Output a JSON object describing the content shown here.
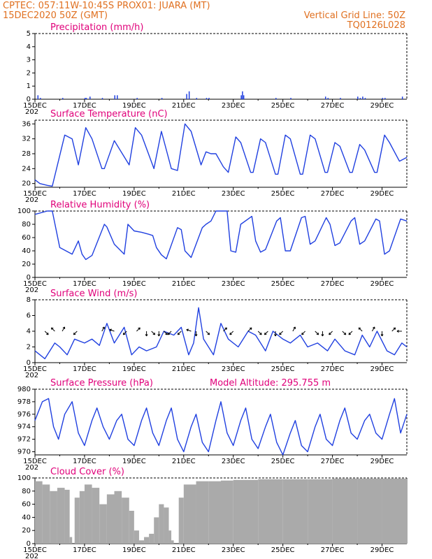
{
  "header": {
    "line1": "CPTEC:  057:11W-10:45S   PROX01: JUARA (MT)",
    "line2": "15DEC2020 50Z (GMT)",
    "grid_note": "Vertical Grid Line: 50Z",
    "code": "TQ0126L028"
  },
  "x_axis": {
    "ticks": [
      "15DEC",
      "17DEC",
      "19DEC",
      "21DEC",
      "23DEC",
      "25DEC",
      "27DEC",
      "29DEC"
    ],
    "tick_days": [
      0,
      2,
      4,
      6,
      8,
      10,
      12,
      14
    ],
    "sub_label": "202",
    "range_days": [
      0,
      15
    ]
  },
  "chart_data": [
    {
      "id": "precip",
      "type": "bar",
      "title": "Precipitation (mm/h)",
      "ylim": [
        0,
        5
      ],
      "yticks": [
        0,
        1,
        2,
        3,
        4,
        5
      ],
      "color": "#1f3fe0",
      "points": [
        [
          0.1,
          0.3
        ],
        [
          0.2,
          0.1
        ],
        [
          1.1,
          0.1
        ],
        [
          2.0,
          0.1
        ],
        [
          2.05,
          0.1
        ],
        [
          2.2,
          0.2
        ],
        [
          2.7,
          0.1
        ],
        [
          3.2,
          0.3
        ],
        [
          3.3,
          0.3
        ],
        [
          4.1,
          0.1
        ],
        [
          5.1,
          0.1
        ],
        [
          6.1,
          0.4
        ],
        [
          6.2,
          0.6
        ],
        [
          6.5,
          0.1
        ],
        [
          6.9,
          0.1
        ],
        [
          7.0,
          0.1
        ],
        [
          8.3,
          0.3
        ],
        [
          8.35,
          0.6
        ],
        [
          8.4,
          0.3
        ],
        [
          9.7,
          0.1
        ],
        [
          10.3,
          0.1
        ],
        [
          11.7,
          0.2
        ],
        [
          11.8,
          0.1
        ],
        [
          12.3,
          0.1
        ],
        [
          13.0,
          0.2
        ],
        [
          13.1,
          0.1
        ],
        [
          13.2,
          0.2
        ],
        [
          13.3,
          0.1
        ],
        [
          14.0,
          0.1
        ],
        [
          14.1,
          0.1
        ],
        [
          14.8,
          0.2
        ]
      ]
    },
    {
      "id": "temp",
      "type": "line",
      "title": "Surface Temperature (nC)",
      "ylim": [
        19,
        37
      ],
      "yticks": [
        20,
        24,
        28,
        32,
        36
      ],
      "color": "#2040e0",
      "x": [
        0,
        0.2,
        0.5,
        0.7,
        1.2,
        1.5,
        1.75,
        2.05,
        2.3,
        2.7,
        2.8,
        3.2,
        3.8,
        4.05,
        4.3,
        4.8,
        5.1,
        5.5,
        5.75,
        6.05,
        6.3,
        6.7,
        6.9,
        7.1,
        7.3,
        7.6,
        7.8,
        8.1,
        8.3,
        8.7,
        8.8,
        9.1,
        9.3,
        9.7,
        9.8,
        10.1,
        10.3,
        10.7,
        10.8,
        11.1,
        11.3,
        11.7,
        11.8,
        12.1,
        12.3,
        12.7,
        12.8,
        13.1,
        13.3,
        13.7,
        13.8,
        14.1,
        14.3,
        14.7,
        15.0
      ],
      "y": [
        21,
        20,
        19.5,
        19.3,
        33,
        32,
        25,
        35,
        32,
        24,
        24,
        31.5,
        25,
        35,
        33,
        24,
        34,
        24,
        23.5,
        36,
        34,
        25,
        28.5,
        28,
        28,
        24.5,
        23,
        32.5,
        31,
        23,
        23,
        32,
        31,
        22.5,
        22.5,
        33,
        32,
        22.5,
        22.5,
        33,
        32,
        23,
        23,
        31,
        30,
        23,
        23,
        30.5,
        29,
        23,
        23,
        33,
        31,
        26,
        27
      ]
    },
    {
      "id": "rh",
      "type": "line",
      "title": "Relative Humidity (%)",
      "ylim": [
        0,
        100
      ],
      "yticks": [
        0,
        20,
        40,
        60,
        80,
        100
      ],
      "color": "#2040e0",
      "x": [
        0,
        0.5,
        0.7,
        1.0,
        1.5,
        1.75,
        1.9,
        2.05,
        2.3,
        2.8,
        2.9,
        3.2,
        3.6,
        3.75,
        4.0,
        4.3,
        4.6,
        4.75,
        4.9,
        5.1,
        5.3,
        5.75,
        5.9,
        6.05,
        6.3,
        6.75,
        6.9,
        7.1,
        7.3,
        7.75,
        7.9,
        8.1,
        8.3,
        8.75,
        8.9,
        9.1,
        9.3,
        9.75,
        9.9,
        10.1,
        10.3,
        10.75,
        10.9,
        11.1,
        11.3,
        11.75,
        11.9,
        12.1,
        12.3,
        12.75,
        12.9,
        13.1,
        13.3,
        13.75,
        13.9,
        14.1,
        14.3,
        14.75,
        15.0
      ],
      "y": [
        95,
        100,
        100,
        45,
        35,
        55,
        35,
        27,
        33,
        80,
        76,
        50,
        35,
        80,
        70,
        68,
        65,
        63,
        45,
        34,
        28,
        75,
        72,
        40,
        30,
        75,
        80,
        85,
        100,
        100,
        40,
        38,
        80,
        92,
        55,
        38,
        42,
        85,
        90,
        40,
        40,
        90,
        92,
        50,
        55,
        90,
        80,
        48,
        52,
        85,
        90,
        50,
        55,
        88,
        85,
        35,
        40,
        88,
        85
      ]
    },
    {
      "id": "wind",
      "type": "line",
      "title": "Surface Wind (m/s)",
      "ylim": [
        0,
        8
      ],
      "yticks": [
        0,
        2,
        4,
        6,
        8
      ],
      "color": "#2040e0",
      "x": [
        0,
        0.4,
        0.8,
        1.0,
        1.3,
        1.6,
        2.0,
        2.3,
        2.6,
        2.9,
        3.2,
        3.6,
        3.9,
        4.2,
        4.5,
        4.9,
        5.2,
        5.6,
        5.9,
        6.2,
        6.4,
        6.6,
        6.8,
        7.2,
        7.5,
        7.8,
        8.2,
        8.6,
        8.9,
        9.3,
        9.6,
        10.0,
        10.3,
        10.7,
        11.0,
        11.4,
        11.8,
        12.1,
        12.5,
        12.9,
        13.2,
        13.5,
        13.8,
        14.2,
        14.5,
        14.8,
        15.0
      ],
      "y": [
        1.5,
        0.5,
        2.5,
        2.0,
        1.0,
        3.0,
        2.5,
        3.0,
        2.2,
        5.0,
        2.5,
        4.5,
        1.0,
        2.0,
        1.5,
        2.0,
        4.0,
        3.5,
        4.5,
        1.0,
        2.5,
        7.0,
        3.0,
        1.0,
        5.0,
        3.0,
        2.0,
        4.0,
        3.5,
        1.5,
        4.0,
        3.0,
        2.5,
        3.5,
        2.0,
        2.5,
        1.5,
        3.0,
        1.5,
        1.0,
        3.5,
        2.0,
        4.0,
        1.5,
        1.0,
        2.5,
        2.0
      ],
      "arrows": [
        [
          0.4,
          45
        ],
        [
          0.8,
          225
        ],
        [
          1.1,
          300
        ],
        [
          1.7,
          135
        ],
        [
          2.7,
          300
        ],
        [
          3.2,
          200
        ],
        [
          3.7,
          135
        ],
        [
          4.1,
          315
        ],
        [
          4.5,
          90
        ],
        [
          4.7,
          45
        ],
        [
          5.0,
          90
        ],
        [
          5.2,
          45
        ],
        [
          5.5,
          135
        ],
        [
          5.9,
          135
        ],
        [
          6.3,
          200
        ],
        [
          6.5,
          90
        ],
        [
          6.9,
          45
        ],
        [
          7.6,
          315
        ],
        [
          8.0,
          135
        ],
        [
          8.6,
          315
        ],
        [
          9.0,
          45
        ],
        [
          9.4,
          135
        ],
        [
          9.7,
          90
        ],
        [
          10.0,
          135
        ],
        [
          10.4,
          300
        ],
        [
          10.9,
          135
        ],
        [
          11.3,
          45
        ],
        [
          11.6,
          90
        ],
        [
          12.0,
          135
        ],
        [
          12.4,
          45
        ],
        [
          12.8,
          135
        ],
        [
          13.2,
          225
        ],
        [
          13.6,
          300
        ],
        [
          14.0,
          90
        ],
        [
          14.4,
          315
        ],
        [
          14.8,
          180
        ]
      ]
    },
    {
      "id": "pres",
      "type": "line",
      "title": "Surface Pressure (hPa)",
      "extra_label": "Model Altitude: 295.755  m",
      "ylim": [
        969.5,
        980
      ],
      "yticks": [
        970,
        972,
        974,
        976,
        978,
        980
      ],
      "color": "#2040e0",
      "x": [
        0,
        0.3,
        0.55,
        0.75,
        0.95,
        1.2,
        1.5,
        1.75,
        2.0,
        2.3,
        2.5,
        2.75,
        3.0,
        3.3,
        3.5,
        3.75,
        4.0,
        4.3,
        4.5,
        4.75,
        5.0,
        5.3,
        5.5,
        5.75,
        6.0,
        6.3,
        6.5,
        6.75,
        7.0,
        7.3,
        7.5,
        7.75,
        8.0,
        8.3,
        8.5,
        8.75,
        9.0,
        9.3,
        9.5,
        9.75,
        10.0,
        10.3,
        10.5,
        10.75,
        11.0,
        11.3,
        11.5,
        11.75,
        12.0,
        12.3,
        12.5,
        12.75,
        13.0,
        13.3,
        13.5,
        13.75,
        14.0,
        14.3,
        14.5,
        14.75,
        15.0
      ],
      "y": [
        975,
        978,
        978.5,
        974,
        972,
        976,
        978,
        973,
        971,
        975,
        977,
        974,
        972,
        975,
        976,
        972,
        971,
        975,
        977,
        973,
        971,
        975,
        977,
        972,
        970,
        974,
        976,
        971.5,
        970,
        975,
        978,
        973,
        971,
        975,
        977,
        972,
        970.5,
        974,
        976,
        971.5,
        969.5,
        973,
        975,
        971,
        970,
        974,
        976,
        972,
        971,
        975,
        977,
        973,
        972,
        975,
        976,
        973,
        972,
        976,
        978.5,
        973,
        976
      ]
    },
    {
      "id": "cloud",
      "type": "bar",
      "title": "Cloud Cover (%)",
      "ylim": [
        0,
        100
      ],
      "yticks": [
        0,
        20,
        40,
        60,
        80,
        100
      ],
      "color": "#aaaaaa",
      "x": [
        0,
        0.3,
        0.6,
        0.9,
        1.2,
        1.4,
        1.5,
        1.6,
        1.8,
        2.0,
        2.3,
        2.6,
        2.9,
        3.2,
        3.5,
        3.8,
        4.0,
        4.2,
        4.4,
        4.6,
        4.8,
        5.0,
        5.2,
        5.4,
        5.5,
        5.6,
        5.8,
        6.0,
        6.5,
        7.0,
        7.5,
        8.0,
        9.0,
        10.0,
        11.0,
        12.0,
        13.0,
        14.0,
        15.0
      ],
      "y": [
        95,
        90,
        80,
        85,
        82,
        10,
        0,
        70,
        80,
        90,
        85,
        60,
        75,
        80,
        70,
        50,
        20,
        5,
        10,
        15,
        40,
        60,
        55,
        20,
        5,
        0,
        70,
        90,
        95,
        95,
        96,
        97,
        98,
        98,
        98,
        99,
        99,
        99,
        99
      ]
    }
  ]
}
